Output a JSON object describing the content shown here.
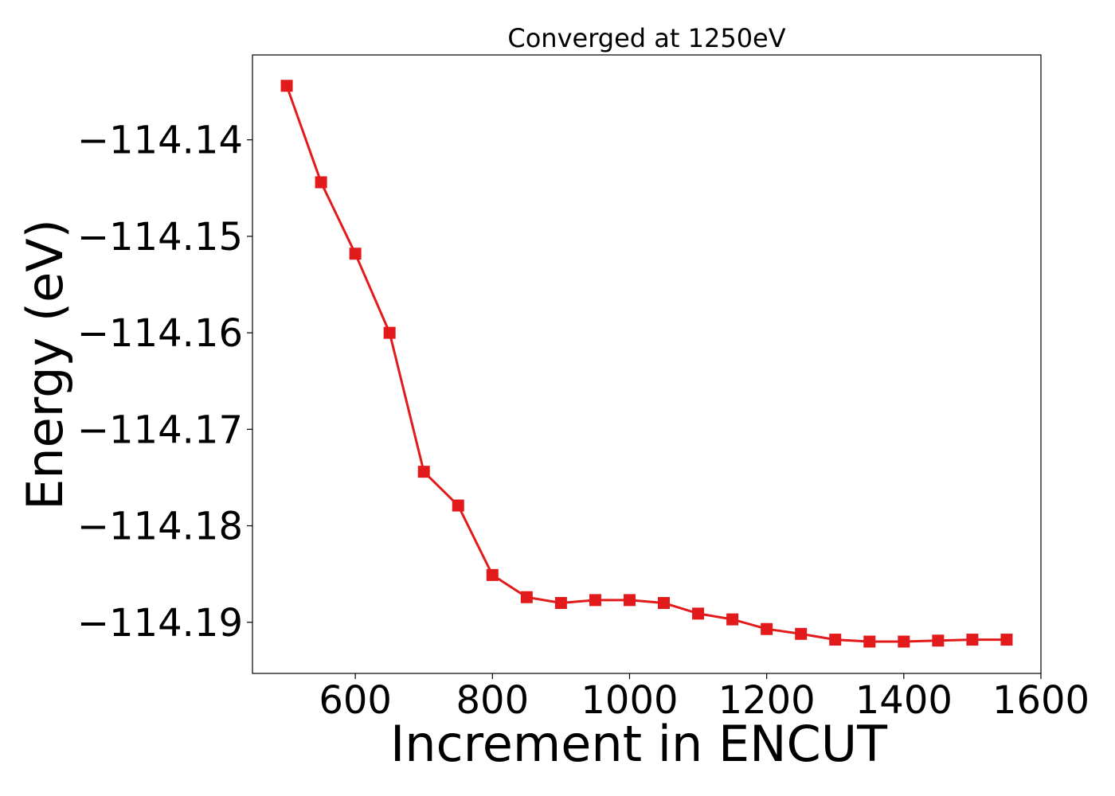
{
  "chart_data": {
    "type": "line",
    "title": "Converged at 1250eV",
    "xlabel": "Increment in ENCUT",
    "ylabel": "Energy (eV)",
    "xlim": [
      450,
      1600
    ],
    "ylim": [
      -114.1953,
      -114.1312
    ],
    "xticks": [
      600,
      800,
      1000,
      1200,
      1400,
      1600
    ],
    "yticks": [
      -114.14,
      -114.15,
      -114.16,
      -114.17,
      -114.18,
      -114.19
    ],
    "grid": false,
    "marker": "square",
    "color": "#e31a1c",
    "series": [
      {
        "x": [
          500,
          550,
          600,
          650,
          700,
          750,
          800,
          850,
          900,
          950,
          1000,
          1050,
          1100,
          1150,
          1200,
          1250,
          1300,
          1350,
          1400,
          1450,
          1500,
          1550
        ],
        "y": [
          -114.1344,
          -114.1444,
          -114.1518,
          -114.16,
          -114.1744,
          -114.1779,
          -114.1851,
          -114.1874,
          -114.188,
          -114.1877,
          -114.1877,
          -114.188,
          -114.1891,
          -114.1897,
          -114.1907,
          -114.1912,
          -114.1918,
          -114.192,
          -114.192,
          -114.1919,
          -114.1918,
          -114.1918
        ]
      }
    ]
  }
}
